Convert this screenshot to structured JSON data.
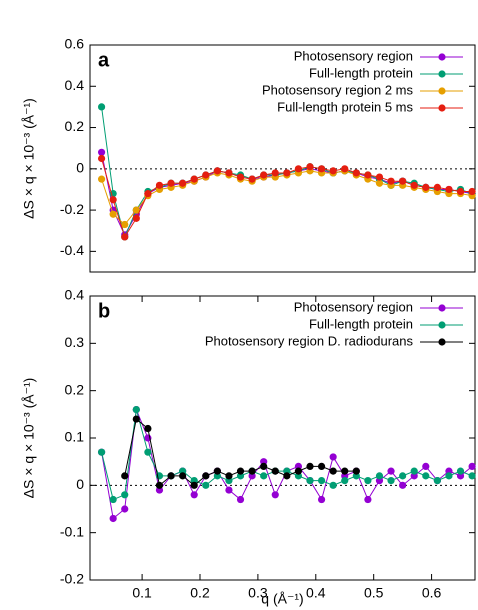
{
  "chart_data": [
    {
      "type": "line",
      "label": "a",
      "ylabel": "ΔS × q × 10⁻³ (Å⁻¹)",
      "x": [
        0.03,
        0.05,
        0.07,
        0.09,
        0.11,
        0.13,
        0.15,
        0.17,
        0.19,
        0.21,
        0.23,
        0.25,
        0.27,
        0.29,
        0.31,
        0.33,
        0.35,
        0.37,
        0.39,
        0.41,
        0.43,
        0.45,
        0.47,
        0.49,
        0.51,
        0.53,
        0.55,
        0.57,
        0.59,
        0.61,
        0.63,
        0.65,
        0.67
      ],
      "xlim": [
        0.01,
        0.675
      ],
      "ylim": [
        -0.5,
        0.6
      ],
      "yticks": [
        -0.4,
        -0.2,
        0,
        0.2,
        0.4,
        0.6
      ],
      "hline": 0,
      "legend": "top-right",
      "series": [
        {
          "name": "Photosensory region",
          "color": "#9400d3",
          "values": [
            0.08,
            -0.2,
            -0.32,
            -0.22,
            -0.12,
            -0.09,
            -0.08,
            -0.07,
            -0.06,
            -0.04,
            -0.01,
            -0.02,
            -0.04,
            -0.05,
            -0.04,
            -0.03,
            -0.02,
            -0.01,
            0,
            -0.01,
            -0.02,
            -0.01,
            -0.02,
            -0.04,
            -0.05,
            -0.07,
            -0.06,
            -0.08,
            -0.09,
            -0.1,
            -0.1,
            -0.11,
            -0.12
          ]
        },
        {
          "name": "Full-length protein",
          "color": "#009e73",
          "values": [
            0.3,
            -0.12,
            -0.33,
            -0.2,
            -0.11,
            -0.09,
            -0.07,
            -0.07,
            -0.05,
            -0.03,
            -0.01,
            -0.02,
            -0.03,
            -0.05,
            -0.03,
            -0.03,
            -0.02,
            -0.01,
            0.01,
            0,
            -0.02,
            -0.01,
            -0.02,
            -0.03,
            -0.05,
            -0.08,
            -0.06,
            -0.07,
            -0.09,
            -0.1,
            -0.11,
            -0.1,
            -0.12
          ]
        },
        {
          "name": "Photosensory region 2 ms",
          "color": "#e69f00",
          "values": [
            -0.05,
            -0.22,
            -0.27,
            -0.2,
            -0.13,
            -0.1,
            -0.09,
            -0.08,
            -0.06,
            -0.04,
            -0.02,
            -0.03,
            -0.05,
            -0.06,
            -0.04,
            -0.04,
            -0.03,
            -0.02,
            -0.01,
            -0.02,
            -0.02,
            -0.01,
            -0.03,
            -0.05,
            -0.07,
            -0.08,
            -0.08,
            -0.09,
            -0.1,
            -0.11,
            -0.12,
            -0.12,
            -0.13
          ]
        },
        {
          "name": "Full-length protein 5 ms",
          "color": "#e51e10",
          "values": [
            0.05,
            -0.15,
            -0.33,
            -0.24,
            -0.12,
            -0.08,
            -0.07,
            -0.07,
            -0.05,
            -0.03,
            -0.01,
            -0.02,
            -0.04,
            -0.05,
            -0.03,
            -0.02,
            -0.02,
            0,
            0.01,
            0,
            -0.01,
            0,
            -0.02,
            -0.03,
            -0.04,
            -0.06,
            -0.06,
            -0.08,
            -0.09,
            -0.09,
            -0.1,
            -0.11,
            -0.11
          ]
        }
      ]
    },
    {
      "type": "line",
      "label": "b",
      "ylabel": "ΔS × q × 10⁻³ (Å⁻¹)",
      "xlabel": "q (Å⁻¹)",
      "x": [
        0.03,
        0.05,
        0.07,
        0.09,
        0.11,
        0.13,
        0.15,
        0.17,
        0.19,
        0.21,
        0.23,
        0.25,
        0.27,
        0.29,
        0.31,
        0.33,
        0.35,
        0.37,
        0.39,
        0.41,
        0.43,
        0.45,
        0.47,
        0.49,
        0.51,
        0.53,
        0.55,
        0.57,
        0.59,
        0.61,
        0.63,
        0.65,
        0.67
      ],
      "xlim": [
        0.01,
        0.675
      ],
      "xticks": [
        0.1,
        0.2,
        0.3,
        0.4,
        0.5,
        0.6
      ],
      "ylim": [
        -0.2,
        0.4
      ],
      "yticks": [
        -0.2,
        -0.1,
        0,
        0.1,
        0.2,
        0.3,
        0.4
      ],
      "hline": 0,
      "legend": "top-right",
      "series": [
        {
          "name": "Photosensory region",
          "color": "#9400d3",
          "values": [
            0.07,
            -0.07,
            -0.05,
            0.16,
            0.1,
            -0.01,
            0.02,
            0.03,
            -0.02,
            0.02,
            0.03,
            -0.01,
            -0.03,
            0.02,
            0.05,
            -0.02,
            0.03,
            0.04,
            0.01,
            -0.03,
            0.06,
            0.02,
            0.03,
            -0.03,
            0.01,
            0.03,
            0,
            0.02,
            0.04,
            0.01,
            0.03,
            0.02,
            0.04
          ]
        },
        {
          "name": "Full-length protein",
          "color": "#009e73",
          "values": [
            0.07,
            -0.03,
            -0.02,
            0.16,
            0.07,
            0.02,
            0.02,
            0.03,
            0.01,
            0,
            0.02,
            0.01,
            0.02,
            0.03,
            0.02,
            0.03,
            0.03,
            0.02,
            0.01,
            0.01,
            0,
            0.01,
            0.02,
            0.01,
            0.02,
            0.01,
            0.02,
            0.03,
            0.02,
            0.01,
            0.02,
            0.03,
            0.02
          ]
        },
        {
          "name": "Photosensory region D. radiodurans",
          "color": "#000000",
          "values": [
            null,
            null,
            0.02,
            0.14,
            0.12,
            0,
            0.02,
            0.02,
            0,
            0.02,
            0.03,
            0.02,
            0.03,
            0.03,
            0.04,
            0.03,
            0.02,
            0.03,
            0.04,
            0.04,
            0.03,
            0.03,
            0.03,
            null,
            null,
            null,
            null,
            null,
            null,
            null,
            null,
            null,
            null
          ]
        }
      ]
    }
  ]
}
